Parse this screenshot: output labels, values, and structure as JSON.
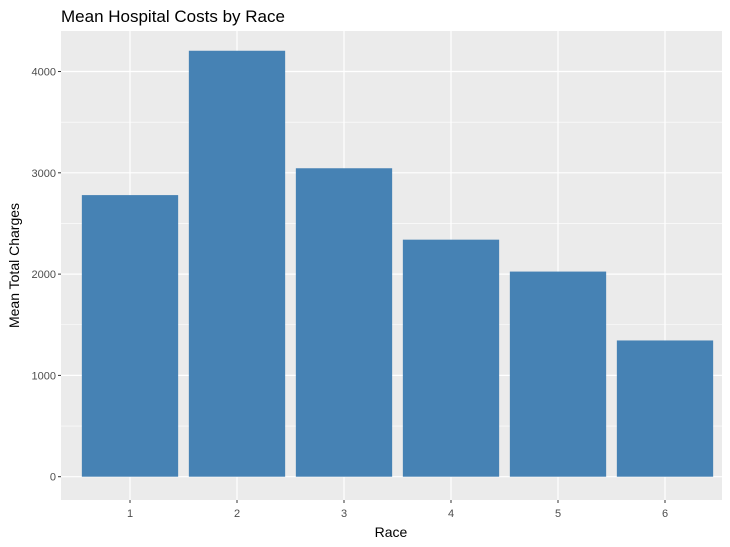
{
  "chart_data": {
    "type": "bar",
    "title": "Mean Hospital Costs by Race",
    "xlabel": "Race",
    "ylabel": "Mean Total Charges",
    "categories": [
      "1",
      "2",
      "3",
      "4",
      "5",
      "6"
    ],
    "values": [
      2780,
      4205,
      3045,
      2340,
      2025,
      1345
    ],
    "ylim": [
      0,
      4400
    ],
    "yticks": [
      0,
      1000,
      2000,
      3000,
      4000
    ],
    "grid": true,
    "bar_color": "#4682B4",
    "panel_background": "#EBEBEB",
    "grid_color": "#FFFFFF"
  }
}
